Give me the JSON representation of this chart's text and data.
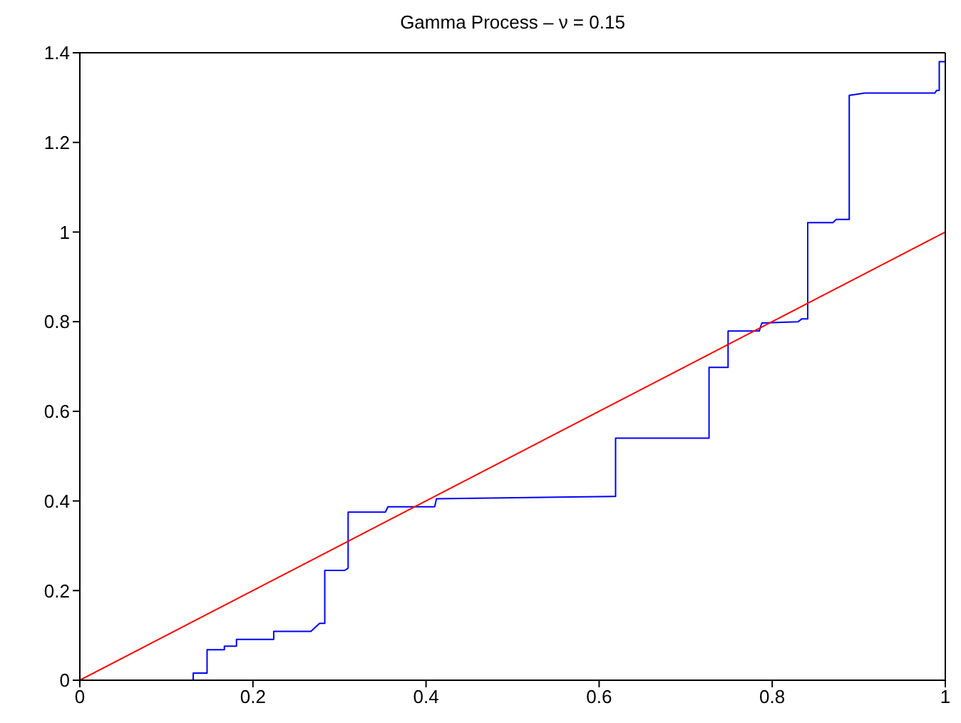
{
  "chart_data": {
    "type": "line",
    "title": "Gamma Process – ν = 0.15",
    "xlim": [
      0,
      1
    ],
    "ylim": [
      0,
      1.4
    ],
    "xticks": [
      0,
      0.2,
      0.4,
      0.6,
      0.8,
      1
    ],
    "yticks": [
      0,
      0.2,
      0.4,
      0.6,
      0.8,
      1,
      1.2,
      1.4
    ],
    "marker": "none",
    "line_style": "solid",
    "series": [
      {
        "color": "#0000ff",
        "x": [
          0,
          0.131,
          0.131,
          0.147,
          0.147,
          0.167,
          0.167,
          0.181,
          0.181,
          0.224,
          0.224,
          0.267,
          0.277,
          0.283,
          0.283,
          0.306,
          0.31,
          0.31,
          0.353,
          0.356,
          0.41,
          0.412,
          0.616,
          0.619,
          0.619,
          0.724,
          0.727,
          0.727,
          0.749,
          0.749,
          0.785,
          0.788,
          0.83,
          0.834,
          0.841,
          0.841,
          0.87,
          0.874,
          0.889,
          0.889,
          0.907,
          0.988,
          0.99,
          0.993,
          0.993,
          1
        ],
        "values": [
          0,
          0,
          0.016,
          0.016,
          0.068,
          0.068,
          0.076,
          0.076,
          0.091,
          0.091,
          0.109,
          0.109,
          0.127,
          0.127,
          0.245,
          0.245,
          0.25,
          0.375,
          0.375,
          0.387,
          0.387,
          0.405,
          0.41,
          0.41,
          0.54,
          0.54,
          0.54,
          0.698,
          0.698,
          0.779,
          0.779,
          0.797,
          0.8,
          0.806,
          0.806,
          1.021,
          1.021,
          1.028,
          1.028,
          1.305,
          1.31,
          1.31,
          1.316,
          1.316,
          1.38,
          1.38
        ]
      },
      {
        "color": "#ff0000",
        "x": [
          0,
          1
        ],
        "values": [
          0,
          1
        ]
      }
    ]
  }
}
